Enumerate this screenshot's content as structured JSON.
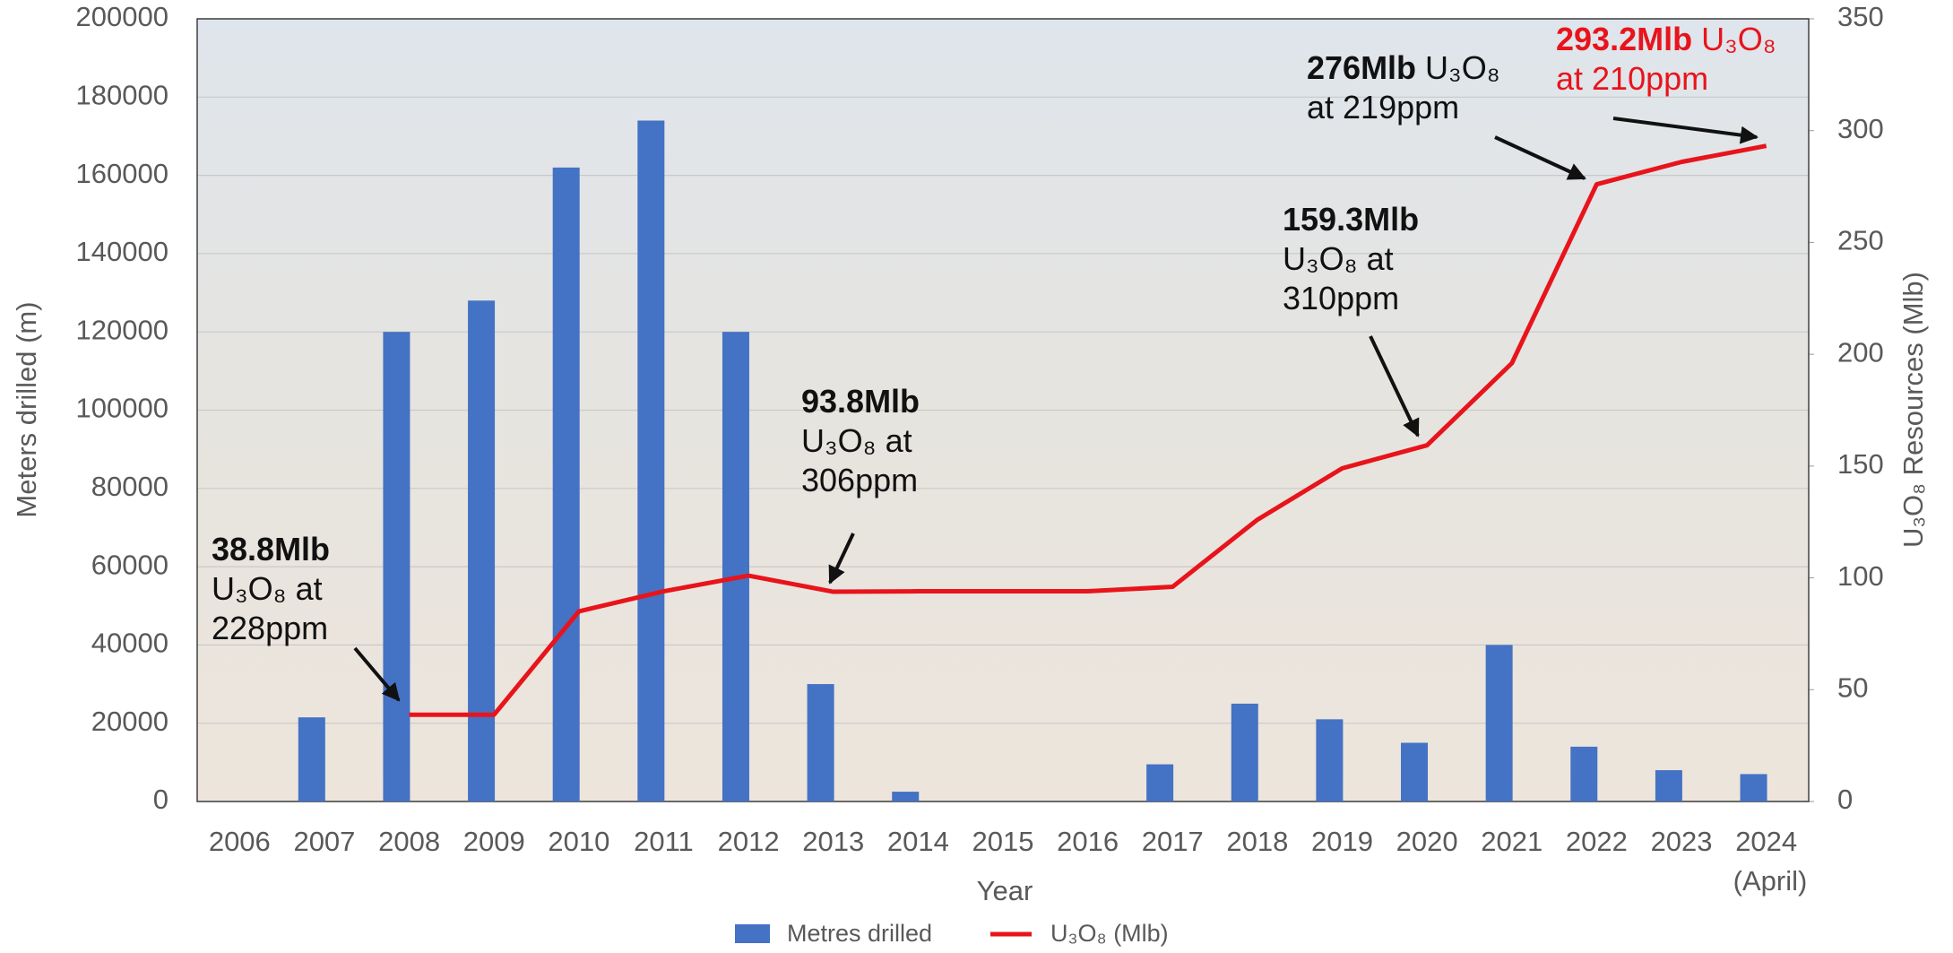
{
  "chart_data": {
    "type": "bar-line",
    "x_label": "Year",
    "y_label": "Meters drilled (m)",
    "y2_label": "U₃O₈ Resources (Mlb)",
    "categories": [
      "2006",
      "2007",
      "2008",
      "2009",
      "2010",
      "2011",
      "2012",
      "2013",
      "2014",
      "2015",
      "2016",
      "2017",
      "2018",
      "2019",
      "2020",
      "2021",
      "2022",
      "2023",
      "2024 (April)"
    ],
    "series": [
      {
        "name": "Metres drilled",
        "type": "bar",
        "color": "#4472c4",
        "values": [
          0,
          21500,
          120000,
          128000,
          162000,
          174000,
          120000,
          30000,
          2500,
          0,
          0,
          9500,
          25000,
          21000,
          15000,
          40000,
          14000,
          8000,
          7000
        ]
      },
      {
        "name": "U₃O₈ (Mlb)",
        "type": "line",
        "axis": "y2",
        "color": "#e8141b",
        "values": [
          null,
          null,
          38.8,
          38.8,
          85,
          94,
          101,
          93.8,
          94,
          94,
          94,
          96,
          126,
          149,
          159.3,
          196,
          276,
          286,
          293.2
        ]
      }
    ],
    "ylim": [
      0,
      200000
    ],
    "yticks": [
      0,
      20000,
      40000,
      60000,
      80000,
      100000,
      120000,
      140000,
      160000,
      180000,
      200000
    ],
    "y2lim": [
      0,
      350
    ],
    "y2ticks": [
      0,
      50,
      100,
      150,
      200,
      250,
      300,
      350
    ],
    "grid": true,
    "legend": "bottom",
    "annotations": [
      {
        "title": "38.8Mlb",
        "lines": [
          "U₃O₈ at",
          "228ppm"
        ],
        "color": "#111111"
      },
      {
        "title": "93.8Mlb",
        "lines": [
          "U₃O₈ at",
          "306ppm"
        ],
        "color": "#111111"
      },
      {
        "title": "159.3Mlb",
        "lines": [
          "U₃O₈ at",
          "310ppm"
        ],
        "color": "#111111"
      },
      {
        "title": "276Mlb",
        "lines": [
          "U₃O₈",
          "at 219ppm"
        ],
        "color": "#111111"
      },
      {
        "title": "293.2Mlb",
        "lines": [
          "U₃O₈",
          "at 210ppm"
        ],
        "color": "#e8141b"
      }
    ]
  }
}
